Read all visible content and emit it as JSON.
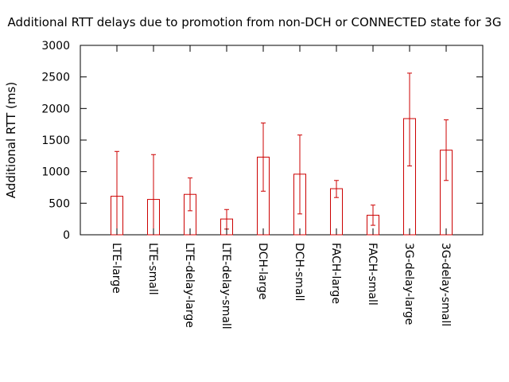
{
  "chart_data": {
    "type": "bar",
    "title": "Additional RTT delays due to promotion from non-DCH or CONNECTED state for 3G",
    "xlabel": "",
    "ylabel": "Additional RTT (ms)",
    "ylim": [
      0,
      3000
    ],
    "yticks": [
      0,
      500,
      1000,
      1500,
      2000,
      2500,
      3000
    ],
    "categories": [
      "LTE-large",
      "LTE-small",
      "LTE-delay-large",
      "LTE-delay-small",
      "DCH-large",
      "DCH-small",
      "FACH-large",
      "FACH-small",
      "3G-delay-large",
      "3G-delay-small"
    ],
    "values": [
      610,
      560,
      640,
      250,
      1230,
      960,
      730,
      310,
      1840,
      1340
    ],
    "err_low": [
      0,
      0,
      380,
      90,
      690,
      330,
      590,
      150,
      1090,
      860
    ],
    "err_high": [
      1320,
      1270,
      900,
      400,
      1770,
      1580,
      860,
      470,
      2560,
      1820
    ],
    "bar_color": "#cc0000",
    "grid": false,
    "legend": "none"
  }
}
